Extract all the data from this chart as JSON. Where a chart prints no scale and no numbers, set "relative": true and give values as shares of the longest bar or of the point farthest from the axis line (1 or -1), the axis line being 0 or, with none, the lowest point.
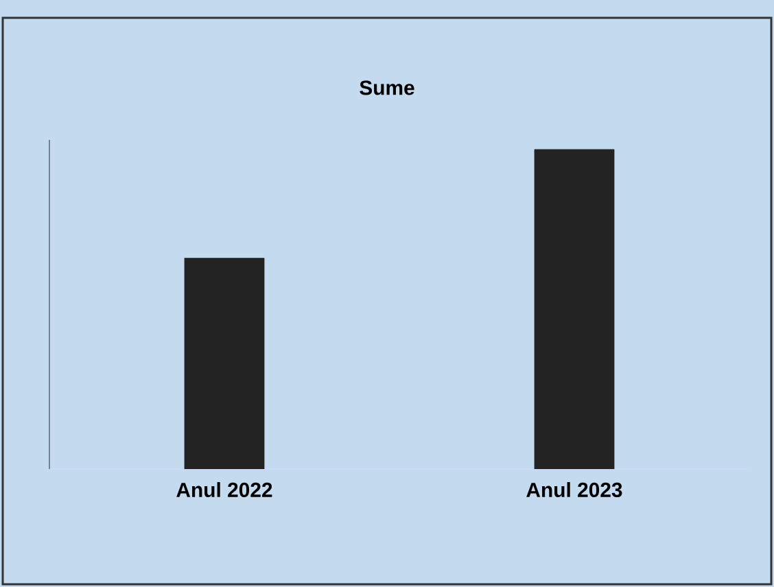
{
  "chart_data": {
    "type": "bar",
    "title": "Sume",
    "relative": true,
    "categories": [
      "Anul 2022",
      "Anul 2023"
    ],
    "values": [
      0.66,
      1
    ],
    "color": "#232323"
  }
}
